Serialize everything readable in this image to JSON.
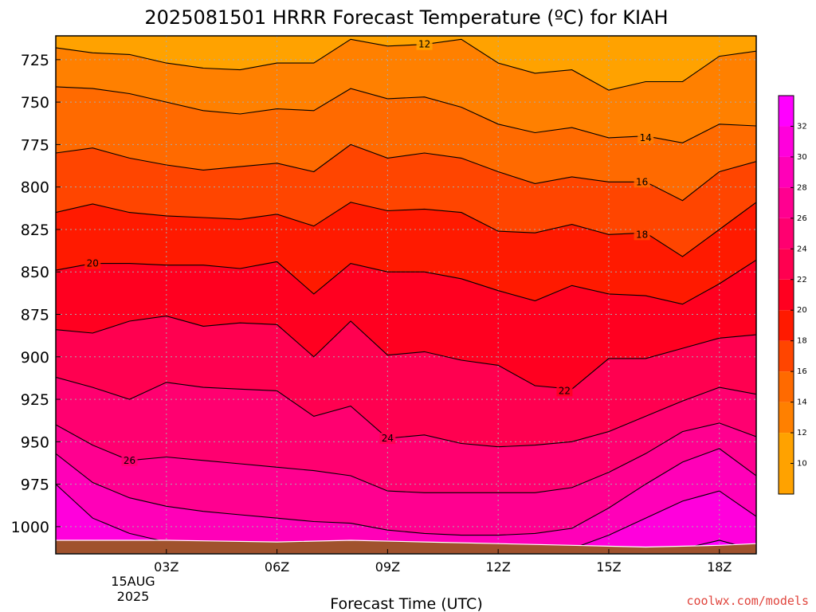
{
  "chart_data": {
    "type": "heatmap",
    "title": "2025081501 HRRR Forecast Temperature (ºC) for KIAH",
    "xlabel": "Forecast Time (UTC)",
    "ylabel": "",
    "credit": "coolwx.com/models",
    "x_range_hours_utc": [
      0,
      19
    ],
    "y_range_hpa": [
      1016,
      711
    ],
    "y_scale": "pressure, increasing downward",
    "x_ticks": [
      {
        "hour": 3,
        "label": "03Z"
      },
      {
        "hour": 6,
        "label": "06Z"
      },
      {
        "hour": 9,
        "label": "09Z"
      },
      {
        "hour": 12,
        "label": "12Z"
      },
      {
        "hour": 15,
        "label": "15Z"
      },
      {
        "hour": 18,
        "label": "18Z"
      }
    ],
    "x_date_label": [
      "15AUG",
      "2025"
    ],
    "y_ticks": [
      725,
      750,
      775,
      800,
      825,
      850,
      875,
      900,
      925,
      950,
      975,
      1000
    ],
    "grid": true,
    "contour_interval": 2,
    "isotherms": [
      {
        "level": 12,
        "label": "12",
        "label_at": [
          10,
          716
        ],
        "points": [
          [
            0,
            718
          ],
          [
            1,
            721
          ],
          [
            2,
            722
          ],
          [
            3,
            727
          ],
          [
            4,
            730
          ],
          [
            5,
            731
          ],
          [
            6,
            727
          ],
          [
            7,
            727
          ],
          [
            8,
            713
          ],
          [
            9,
            717
          ],
          [
            10,
            716
          ],
          [
            11,
            713
          ],
          [
            12,
            727
          ],
          [
            13,
            733
          ],
          [
            14,
            731
          ],
          [
            15,
            743
          ],
          [
            16,
            738
          ],
          [
            17,
            738
          ],
          [
            18,
            723
          ],
          [
            19,
            720
          ]
        ]
      },
      {
        "level": 14,
        "label": "14",
        "label_at": [
          16,
          771
        ],
        "points": [
          [
            0,
            741
          ],
          [
            1,
            742
          ],
          [
            2,
            745
          ],
          [
            3,
            750
          ],
          [
            4,
            755
          ],
          [
            5,
            757
          ],
          [
            6,
            754
          ],
          [
            7,
            755
          ],
          [
            8,
            742
          ],
          [
            9,
            748
          ],
          [
            10,
            747
          ],
          [
            11,
            753
          ],
          [
            12,
            763
          ],
          [
            13,
            768
          ],
          [
            14,
            765
          ],
          [
            15,
            771
          ],
          [
            16,
            770
          ],
          [
            17,
            774
          ],
          [
            18,
            763
          ],
          [
            19,
            764
          ]
        ]
      },
      {
        "level": 16,
        "label": "16",
        "label_at": [
          15.9,
          797
        ],
        "points": [
          [
            0,
            780
          ],
          [
            1,
            777
          ],
          [
            2,
            783
          ],
          [
            3,
            787
          ],
          [
            4,
            790
          ],
          [
            5,
            788
          ],
          [
            6,
            786
          ],
          [
            7,
            791
          ],
          [
            8,
            775
          ],
          [
            9,
            783
          ],
          [
            10,
            780
          ],
          [
            11,
            783
          ],
          [
            12,
            791
          ],
          [
            13,
            798
          ],
          [
            14,
            794
          ],
          [
            15,
            797
          ],
          [
            16,
            797
          ],
          [
            17,
            808
          ],
          [
            18,
            791
          ],
          [
            19,
            785
          ]
        ]
      },
      {
        "level": 18,
        "label": "18",
        "label_at": [
          15.9,
          828
        ],
        "points": [
          [
            0,
            815
          ],
          [
            1,
            810
          ],
          [
            2,
            815
          ],
          [
            3,
            817
          ],
          [
            4,
            818
          ],
          [
            5,
            819
          ],
          [
            6,
            816
          ],
          [
            7,
            823
          ],
          [
            8,
            809
          ],
          [
            9,
            814
          ],
          [
            10,
            813
          ],
          [
            11,
            815
          ],
          [
            12,
            826
          ],
          [
            13,
            827
          ],
          [
            14,
            822
          ],
          [
            15,
            828
          ],
          [
            16,
            827
          ],
          [
            17,
            841
          ],
          [
            18,
            825
          ],
          [
            19,
            809
          ]
        ]
      },
      {
        "level": 20,
        "label": "20",
        "label_at": [
          1,
          845
        ],
        "points": [
          [
            0,
            849
          ],
          [
            1,
            845
          ],
          [
            2,
            845
          ],
          [
            3,
            846
          ],
          [
            4,
            846
          ],
          [
            5,
            848
          ],
          [
            6,
            844
          ],
          [
            7,
            863
          ],
          [
            8,
            845
          ],
          [
            9,
            850
          ],
          [
            10,
            850
          ],
          [
            11,
            854
          ],
          [
            12,
            861
          ],
          [
            13,
            867
          ],
          [
            14,
            858
          ],
          [
            15,
            863
          ],
          [
            16,
            864
          ],
          [
            17,
            869
          ],
          [
            18,
            857
          ],
          [
            19,
            843
          ]
        ]
      },
      {
        "level": 22,
        "label": "22",
        "label_at": [
          13.8,
          920
        ],
        "points": [
          [
            0,
            884
          ],
          [
            1,
            886
          ],
          [
            2,
            879
          ],
          [
            3,
            876
          ],
          [
            4,
            882
          ],
          [
            5,
            880
          ],
          [
            6,
            881
          ],
          [
            7,
            900
          ],
          [
            8,
            879
          ],
          [
            9,
            899
          ],
          [
            10,
            897
          ],
          [
            11,
            902
          ],
          [
            12,
            905
          ],
          [
            13,
            917
          ],
          [
            14,
            919
          ],
          [
            15,
            901
          ],
          [
            16,
            901
          ],
          [
            17,
            895
          ],
          [
            18,
            889
          ],
          [
            19,
            887
          ]
        ]
      },
      {
        "level": 24,
        "label": "24",
        "label_at": [
          9,
          948
        ],
        "points": [
          [
            0,
            912
          ],
          [
            1,
            918
          ],
          [
            2,
            925
          ],
          [
            3,
            915
          ],
          [
            4,
            918
          ],
          [
            5,
            919
          ],
          [
            6,
            920
          ],
          [
            7,
            935
          ],
          [
            8,
            929
          ],
          [
            9,
            948
          ],
          [
            10,
            946
          ],
          [
            11,
            951
          ],
          [
            12,
            953
          ],
          [
            13,
            952
          ],
          [
            14,
            950
          ],
          [
            15,
            944
          ],
          [
            16,
            935
          ],
          [
            17,
            926
          ],
          [
            18,
            918
          ],
          [
            19,
            922
          ]
        ]
      },
      {
        "level": 26,
        "label": "26",
        "label_at": [
          2,
          961
        ],
        "points": [
          [
            0,
            940
          ],
          [
            1,
            952
          ],
          [
            2,
            961
          ],
          [
            3,
            959
          ],
          [
            4,
            961
          ],
          [
            5,
            963
          ],
          [
            6,
            965
          ],
          [
            7,
            967
          ],
          [
            8,
            970
          ],
          [
            9,
            979
          ],
          [
            10,
            980
          ],
          [
            11,
            980
          ],
          [
            12,
            980
          ],
          [
            13,
            980
          ],
          [
            14,
            977
          ],
          [
            15,
            968
          ],
          [
            16,
            957
          ],
          [
            17,
            944
          ],
          [
            18,
            939
          ],
          [
            19,
            947
          ]
        ]
      },
      {
        "level": 28,
        "label": "",
        "points": [
          [
            0,
            957
          ],
          [
            1,
            974
          ],
          [
            2,
            983
          ],
          [
            3,
            988
          ],
          [
            4,
            991
          ],
          [
            5,
            993
          ],
          [
            6,
            995
          ],
          [
            7,
            997
          ],
          [
            8,
            998
          ],
          [
            9,
            1002
          ],
          [
            10,
            1004
          ],
          [
            11,
            1005
          ],
          [
            12,
            1005
          ],
          [
            13,
            1004
          ],
          [
            14,
            1001
          ],
          [
            15,
            989
          ],
          [
            16,
            975
          ],
          [
            17,
            962
          ],
          [
            18,
            954
          ],
          [
            19,
            970
          ]
        ]
      },
      {
        "level": 30,
        "label": "",
        "points": [
          [
            0,
            975
          ],
          [
            0.5,
            985
          ],
          [
            1,
            995
          ],
          [
            2,
            1004
          ],
          [
            3,
            1009
          ],
          [
            4,
            1011
          ],
          [
            5,
            1012
          ],
          [
            6,
            1013
          ],
          [
            7,
            1014
          ],
          [
            8,
            1014
          ],
          [
            8.8,
            1016
          ]
        ]
      },
      {
        "level": 30,
        "label": "",
        "points": [
          [
            13.3,
            1016
          ],
          [
            14,
            1013
          ],
          [
            15,
            1005
          ],
          [
            16,
            995
          ],
          [
            17,
            985
          ],
          [
            18,
            979
          ],
          [
            19,
            994
          ]
        ]
      },
      {
        "level": 32,
        "label": "",
        "points": [
          [
            15,
            1016
          ],
          [
            16,
            1015
          ],
          [
            17,
            1013
          ],
          [
            18,
            1008
          ],
          [
            19,
            1014
          ]
        ]
      }
    ],
    "surface_hpa": [
      [
        0,
        1008
      ],
      [
        3,
        1008
      ],
      [
        6,
        1009
      ],
      [
        8,
        1008
      ],
      [
        10,
        1009
      ],
      [
        12,
        1010
      ],
      [
        14,
        1011
      ],
      [
        16,
        1012
      ],
      [
        18,
        1011
      ],
      [
        19,
        1010
      ]
    ],
    "colorbar": {
      "orientation": "vertical",
      "position": "right",
      "min": 8,
      "max": 34,
      "labels": [
        10,
        12,
        14,
        16,
        18,
        20,
        22,
        24,
        26,
        28,
        30,
        32
      ],
      "colors": [
        {
          "from": 8,
          "to": 12,
          "color": "#ffa200"
        },
        {
          "from": 12,
          "to": 14,
          "color": "#ff8000"
        },
        {
          "from": 14,
          "to": 16,
          "color": "#ff6a00"
        },
        {
          "from": 16,
          "to": 18,
          "color": "#ff4500"
        },
        {
          "from": 18,
          "to": 20,
          "color": "#ff1a00"
        },
        {
          "from": 20,
          "to": 22,
          "color": "#ff0020"
        },
        {
          "from": 22,
          "to": 24,
          "color": "#ff0050"
        },
        {
          "from": 24,
          "to": 26,
          "color": "#ff0070"
        },
        {
          "from": 26,
          "to": 28,
          "color": "#ff0090"
        },
        {
          "from": 28,
          "to": 30,
          "color": "#ff00b8"
        },
        {
          "from": 30,
          "to": 32,
          "color": "#ff00dc"
        },
        {
          "from": 32,
          "to": 34,
          "color": "#ff00ff"
        }
      ]
    },
    "surface_color": "#a0522d",
    "grid_color": "#aaaaaa"
  }
}
